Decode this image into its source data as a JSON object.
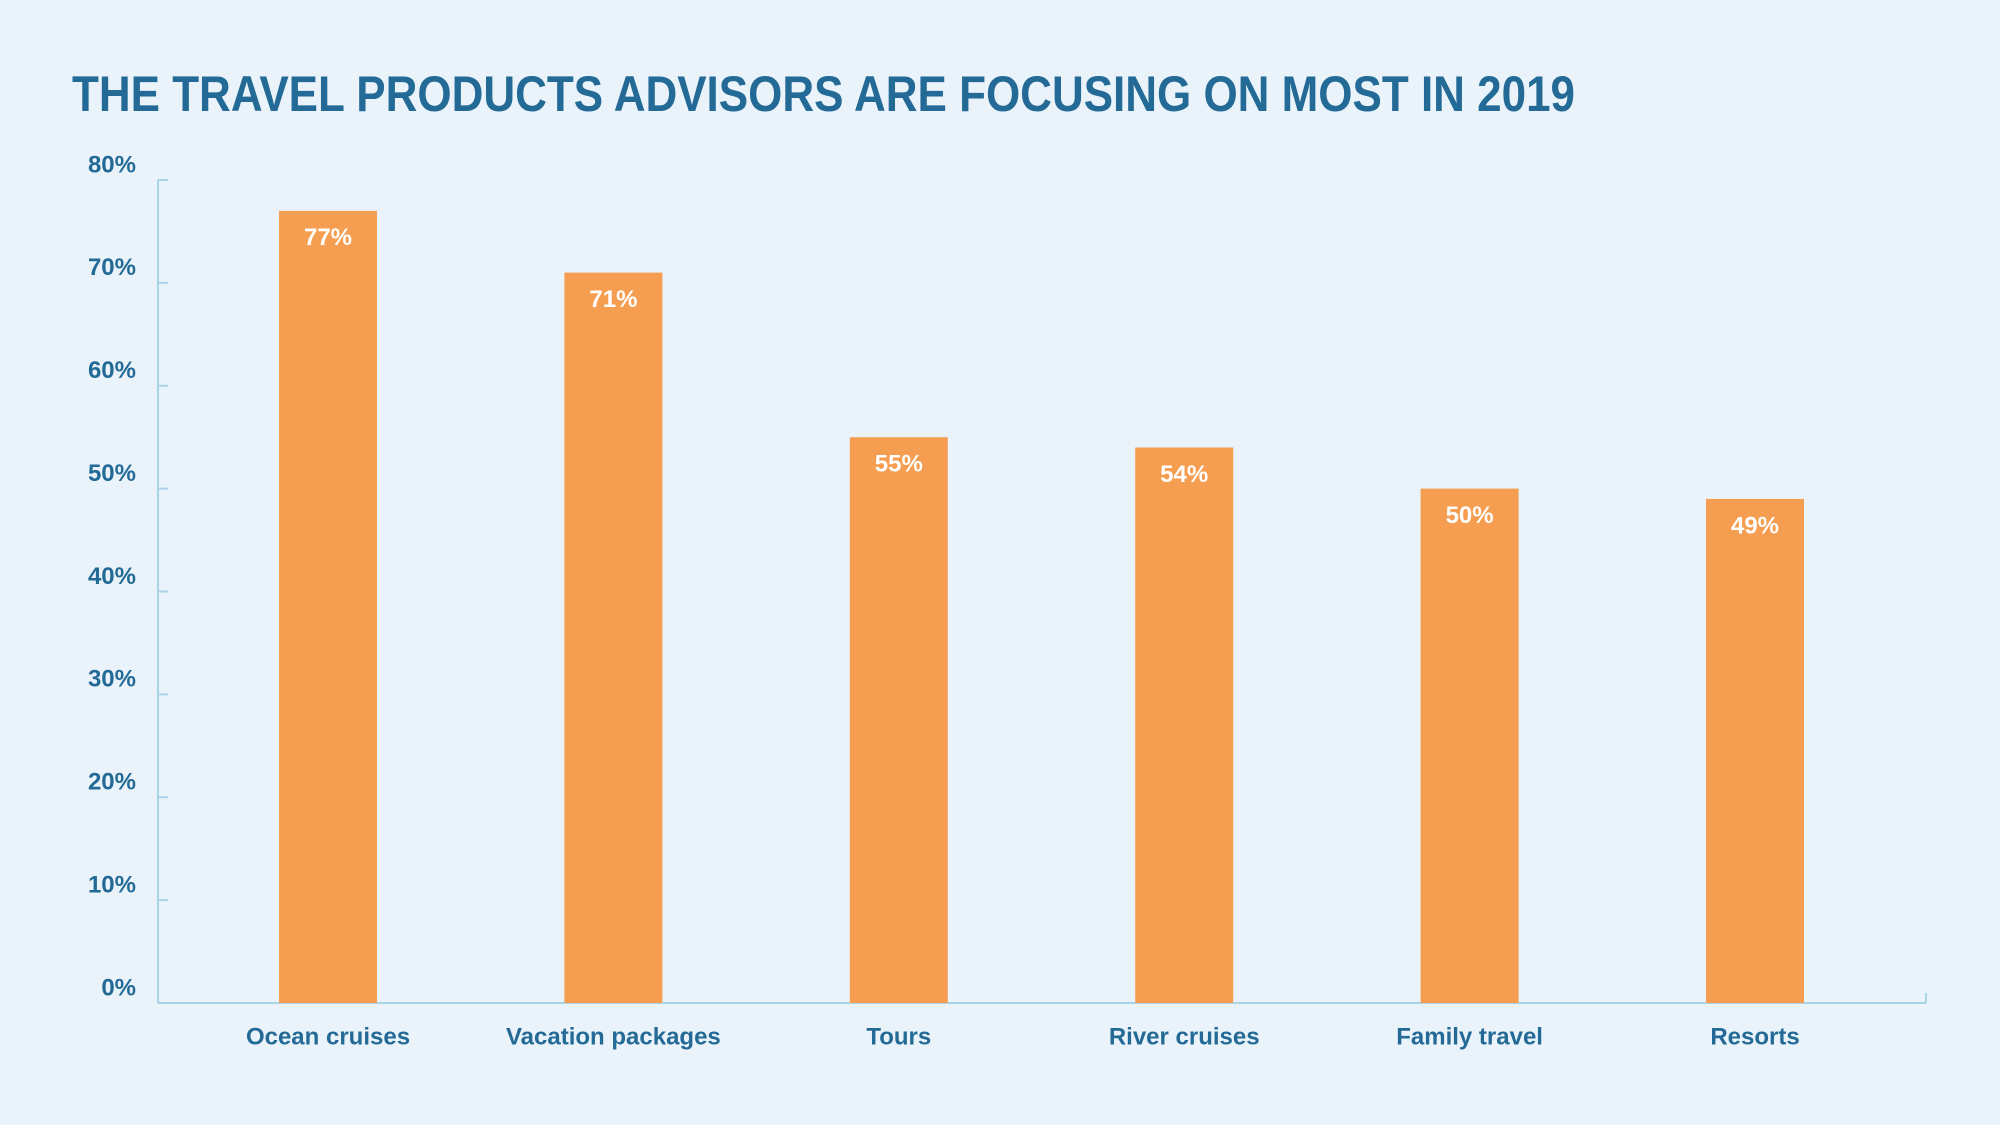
{
  "chart_data": {
    "type": "bar",
    "title": "THE TRAVEL PRODUCTS ADVISORS ARE FOCUSING ON MOST IN 2019",
    "categories": [
      "Ocean cruises",
      "Vacation packages",
      "Tours",
      "River cruises",
      "Family travel",
      "Resorts"
    ],
    "values": [
      77,
      71,
      55,
      54,
      50,
      49
    ],
    "value_labels": [
      "77%",
      "71%",
      "55%",
      "54%",
      "50%",
      "49%"
    ],
    "color": "#f59e52",
    "ylim": [
      0,
      80
    ],
    "yticks": [
      {
        "value": 0,
        "label": "0%"
      },
      {
        "value": 10,
        "label": "10%"
      },
      {
        "value": 20,
        "label": "20%"
      },
      {
        "value": 30,
        "label": "30%"
      },
      {
        "value": 40,
        "label": "40%"
      },
      {
        "value": 50,
        "label": "50%"
      },
      {
        "value": 60,
        "label": "60%"
      },
      {
        "value": 70,
        "label": "70%"
      },
      {
        "value": 80,
        "label": "80%"
      }
    ],
    "grid": false
  }
}
